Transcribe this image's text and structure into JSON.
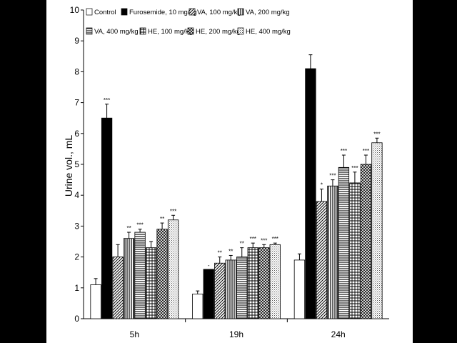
{
  "chart_data": {
    "type": "bar",
    "ylabel": "Urine vol., mL",
    "xlabel": "",
    "ylim": [
      0,
      10
    ],
    "yticks": [
      "0",
      "1",
      "2",
      "3",
      "4",
      "5",
      "6",
      "7",
      "8",
      "9",
      "10"
    ],
    "categories": [
      "5h",
      "19h",
      "24h"
    ],
    "legend_position": "top",
    "series": [
      {
        "name": "Control",
        "pattern": "white",
        "values": [
          1.1,
          0.8,
          1.9
        ],
        "errors": [
          0.2,
          0.1,
          0.2
        ],
        "sig": [
          "",
          "",
          ""
        ]
      },
      {
        "name": "Furosemide, 10 mg/kg",
        "pattern": "black",
        "values": [
          6.5,
          1.6,
          8.1
        ],
        "errors": [
          0.45,
          0.0,
          0.45
        ],
        "sig": [
          "***",
          "-",
          ""
        ]
      },
      {
        "name": "VA, 100 mg/kg",
        "pattern": "diagonal",
        "values": [
          2.0,
          1.8,
          3.8
        ],
        "errors": [
          0.4,
          0.2,
          0.4
        ],
        "sig": [
          "",
          "**",
          "*"
        ]
      },
      {
        "name": "VA, 200 mg/kg",
        "pattern": "vertical",
        "values": [
          2.6,
          1.9,
          4.3
        ],
        "errors": [
          0.2,
          0.15,
          0.2
        ],
        "sig": [
          "**",
          "**",
          "***"
        ]
      },
      {
        "name": "VA, 400 mg/kg",
        "pattern": "horizontal",
        "values": [
          2.8,
          2.0,
          4.9
        ],
        "errors": [
          0.1,
          0.3,
          0.4
        ],
        "sig": [
          "***",
          "**",
          "***"
        ]
      },
      {
        "name": "HE, 100 mg/kg",
        "pattern": "grid",
        "values": [
          2.3,
          2.3,
          4.4
        ],
        "errors": [
          0.2,
          0.15,
          0.35
        ],
        "sig": [
          "",
          "***",
          "***"
        ]
      },
      {
        "name": "HE, 200 mg/kg",
        "pattern": "crosshatch",
        "values": [
          2.9,
          2.3,
          5.0
        ],
        "errors": [
          0.2,
          0.1,
          0.3
        ],
        "sig": [
          "**",
          "***",
          "***"
        ]
      },
      {
        "name": "HE, 400 mg/kg",
        "pattern": "dots",
        "values": [
          3.2,
          2.4,
          5.7
        ],
        "errors": [
          0.15,
          0.05,
          0.15
        ],
        "sig": [
          "***",
          "***",
          "***"
        ]
      }
    ]
  }
}
